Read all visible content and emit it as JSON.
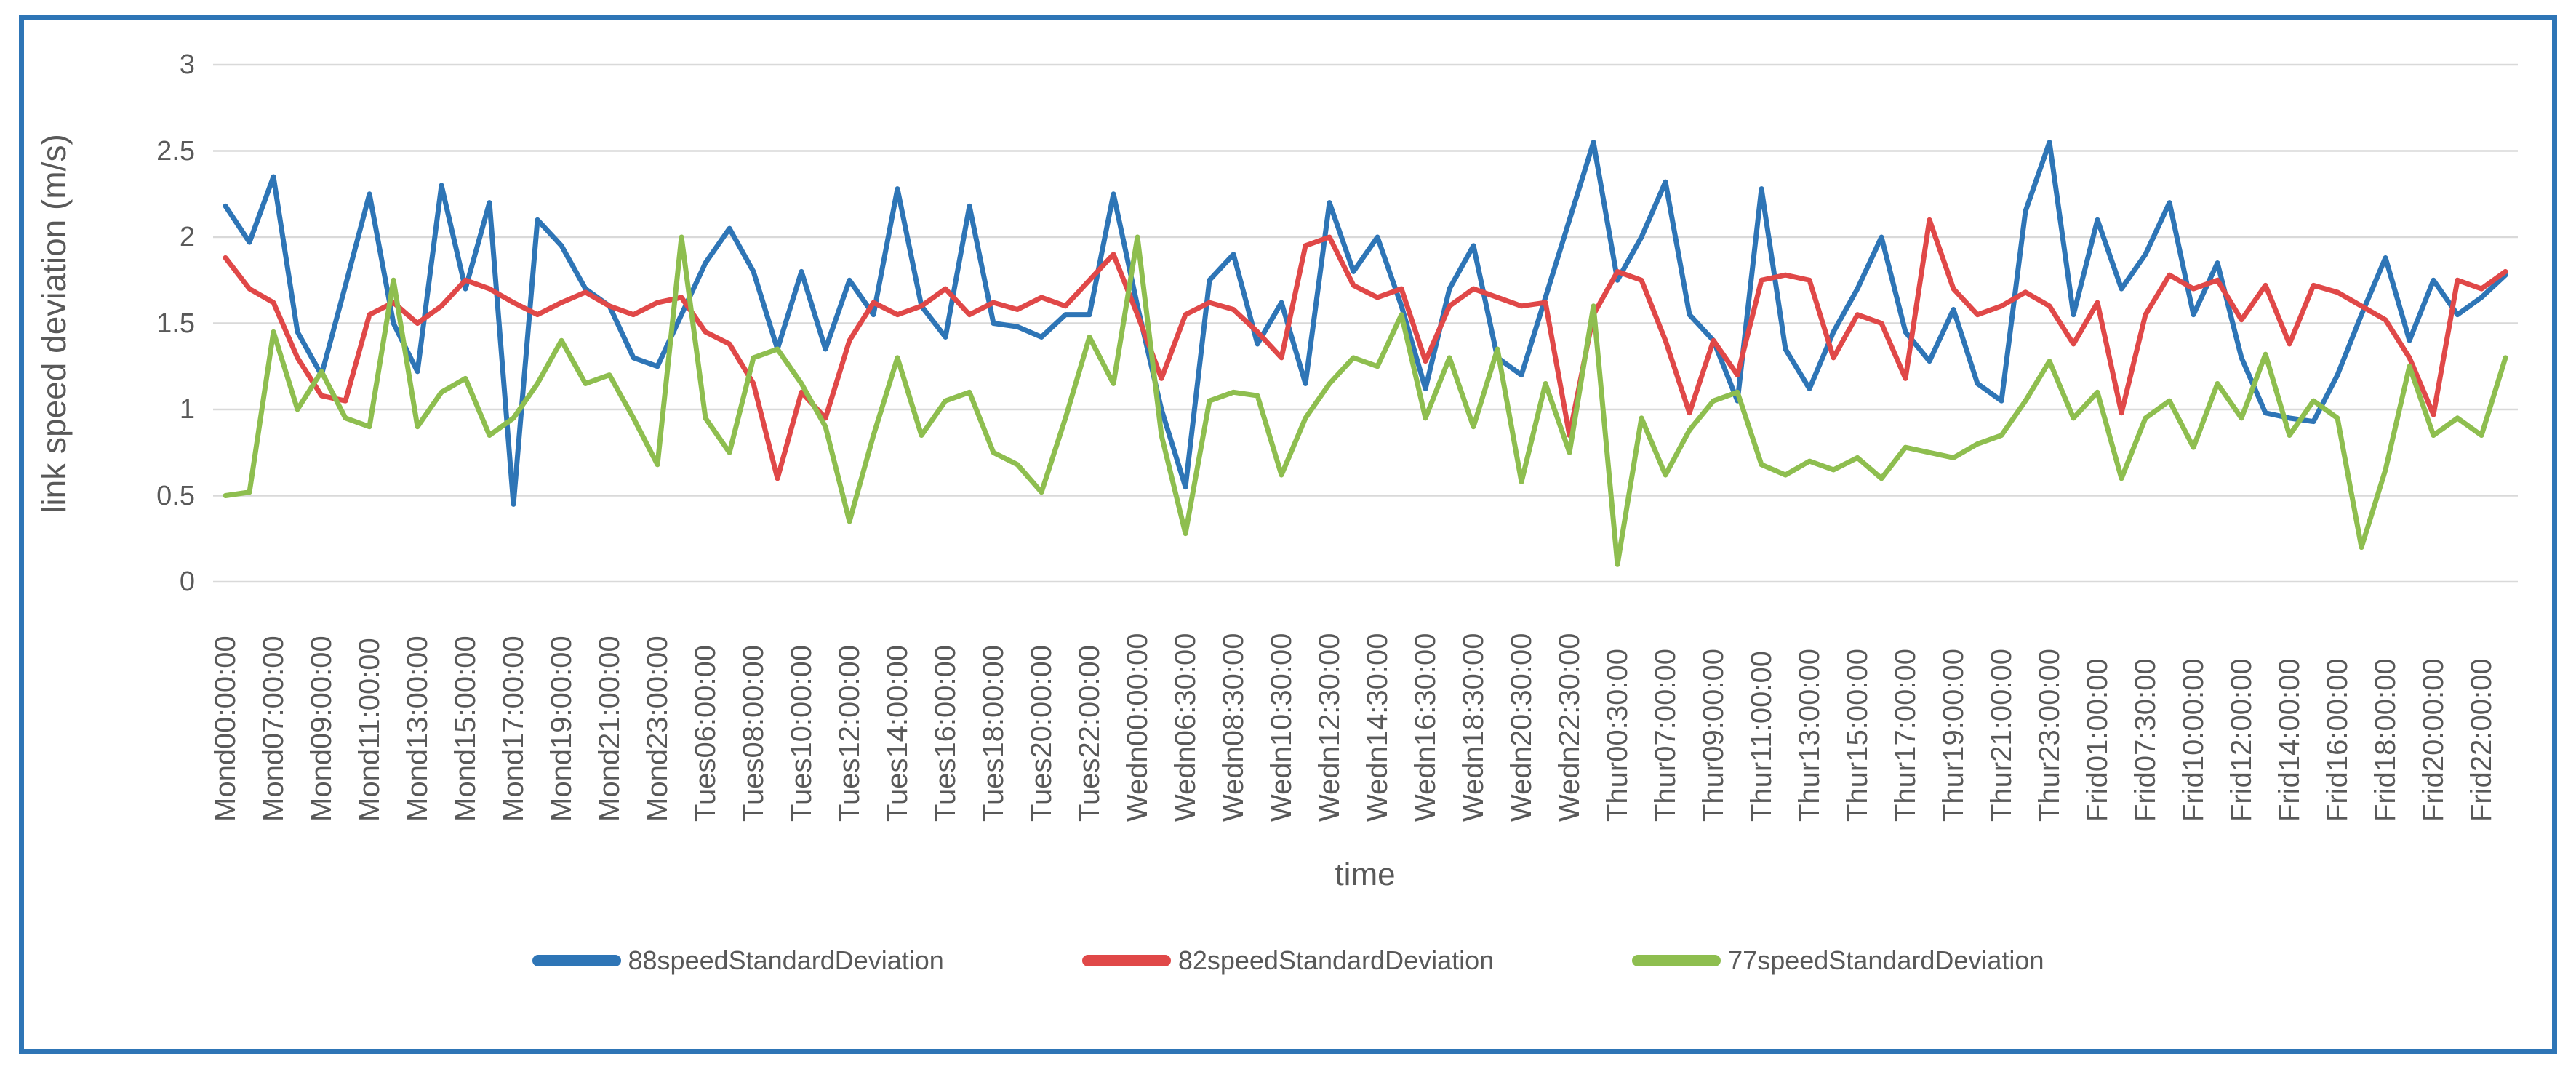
{
  "window": {
    "background_color": "#FFFFFF",
    "frame_border_color": "#2E75B6"
  },
  "chart_data": {
    "type": "line",
    "title": "",
    "xlabel": "time",
    "ylabel": "link speed deviation (m/s)",
    "ylim": [
      0,
      3
    ],
    "y_ticks": [
      "0",
      "0.5",
      "1",
      "1.5",
      "2",
      "2.5",
      "3"
    ],
    "grid": "horizontal",
    "gridline_color": "#D9D9D9",
    "tick_text_color": "#595959",
    "legend_position": "bottom",
    "points_per_label": 2,
    "categories": [
      "Mond00:00:00",
      "Mond07:00:00",
      "Mond09:00:00",
      "Mond11:00:00",
      "Mond13:00:00",
      "Mond15:00:00",
      "Mond17:00:00",
      "Mond19:00:00",
      "Mond21:00:00",
      "Mond23:00:00",
      "Tues06:00:00",
      "Tues08:00:00",
      "Tues10:00:00",
      "Tues12:00:00",
      "Tues14:00:00",
      "Tues16:00:00",
      "Tues18:00:00",
      "Tues20:00:00",
      "Tues22:00:00",
      "Wedn00:00:00",
      "Wedn06:30:00",
      "Wedn08:30:00",
      "Wedn10:30:00",
      "Wedn12:30:00",
      "Wedn14:30:00",
      "Wedn16:30:00",
      "Wedn18:30:00",
      "Wedn20:30:00",
      "Wedn22:30:00",
      "Thur00:30:00",
      "Thur07:00:00",
      "Thur09:00:00",
      "Thur11:00:00",
      "Thur13:00:00",
      "Thur15:00:00",
      "Thur17:00:00",
      "Thur19:00:00",
      "Thur21:00:00",
      "Thur23:00:00",
      "Frid01:00:00",
      "Frid07:30:00",
      "Frid10:00:00",
      "Frid12:00:00",
      "Frid14:00:00",
      "Frid16:00:00",
      "Frid18:00:00",
      "Frid20:00:00",
      "Frid22:00:00"
    ],
    "series": [
      {
        "name": "88speedStandardDeviation",
        "color": "#2E75B6",
        "values": [
          2.18,
          1.97,
          2.35,
          1.45,
          1.2,
          1.72,
          2.25,
          1.5,
          1.22,
          2.3,
          1.7,
          2.2,
          0.45,
          2.1,
          1.95,
          1.7,
          1.6,
          1.3,
          1.25,
          1.55,
          1.85,
          2.05,
          1.8,
          1.35,
          1.8,
          1.35,
          1.75,
          1.55,
          2.28,
          1.6,
          1.42,
          2.18,
          1.5,
          1.48,
          1.42,
          1.55,
          1.55,
          2.25,
          1.6,
          1.0,
          0.55,
          1.75,
          1.9,
          1.38,
          1.62,
          1.15,
          2.2,
          1.8,
          2.0,
          1.6,
          1.12,
          1.7,
          1.95,
          1.3,
          1.2,
          1.65,
          2.1,
          2.55,
          1.75,
          2.0,
          2.32,
          1.55,
          1.4,
          1.05,
          2.28,
          1.35,
          1.12,
          1.45,
          1.7,
          2.0,
          1.45,
          1.28,
          1.58,
          1.15,
          1.05,
          2.15,
          2.55,
          1.55,
          2.1,
          1.7,
          1.9,
          2.2,
          1.55,
          1.85,
          1.3,
          0.98,
          0.95,
          0.93,
          1.2,
          1.55,
          1.88,
          1.4,
          1.75,
          1.55,
          1.65,
          1.78
        ]
      },
      {
        "name": "82speedStandardDeviation",
        "color": "#E04848",
        "values": [
          1.88,
          1.7,
          1.62,
          1.3,
          1.08,
          1.05,
          1.55,
          1.62,
          1.5,
          1.6,
          1.75,
          1.7,
          1.62,
          1.55,
          1.62,
          1.68,
          1.6,
          1.55,
          1.62,
          1.65,
          1.45,
          1.38,
          1.15,
          0.6,
          1.1,
          0.95,
          1.4,
          1.62,
          1.55,
          1.6,
          1.7,
          1.55,
          1.62,
          1.58,
          1.65,
          1.6,
          1.75,
          1.9,
          1.55,
          1.18,
          1.55,
          1.62,
          1.58,
          1.45,
          1.3,
          1.95,
          2.0,
          1.72,
          1.65,
          1.7,
          1.28,
          1.6,
          1.7,
          1.65,
          1.6,
          1.62,
          0.85,
          1.55,
          1.8,
          1.75,
          1.4,
          0.98,
          1.4,
          1.2,
          1.75,
          1.78,
          1.75,
          1.3,
          1.55,
          1.5,
          1.18,
          2.1,
          1.7,
          1.55,
          1.6,
          1.68,
          1.6,
          1.38,
          1.62,
          0.98,
          1.55,
          1.78,
          1.7,
          1.75,
          1.52,
          1.72,
          1.38,
          1.72,
          1.68,
          1.6,
          1.52,
          1.3,
          0.97,
          1.75,
          1.7,
          1.8
        ]
      },
      {
        "name": "77speedStandardDeviation",
        "color": "#8EBE4F",
        "values": [
          0.5,
          0.52,
          1.45,
          1.0,
          1.22,
          0.95,
          0.9,
          1.75,
          0.9,
          1.1,
          1.18,
          0.85,
          0.95,
          1.15,
          1.4,
          1.15,
          1.2,
          0.95,
          0.68,
          2.0,
          0.95,
          0.75,
          1.3,
          1.35,
          1.15,
          0.9,
          0.35,
          0.85,
          1.3,
          0.85,
          1.05,
          1.1,
          0.75,
          0.68,
          0.52,
          0.95,
          1.42,
          1.15,
          2.0,
          0.85,
          0.28,
          1.05,
          1.1,
          1.08,
          0.62,
          0.95,
          1.15,
          1.3,
          1.25,
          1.55,
          0.95,
          1.3,
          0.9,
          1.35,
          0.58,
          1.15,
          0.75,
          1.6,
          0.1,
          0.95,
          0.62,
          0.88,
          1.05,
          1.1,
          0.68,
          0.62,
          0.7,
          0.65,
          0.72,
          0.6,
          0.78,
          0.75,
          0.72,
          0.8,
          0.85,
          1.05,
          1.28,
          0.95,
          1.1,
          0.6,
          0.95,
          1.05,
          0.78,
          1.15,
          0.95,
          1.32,
          0.85,
          1.05,
          0.95,
          0.2,
          0.65,
          1.25,
          0.85,
          0.95,
          0.85,
          1.3
        ]
      }
    ]
  }
}
